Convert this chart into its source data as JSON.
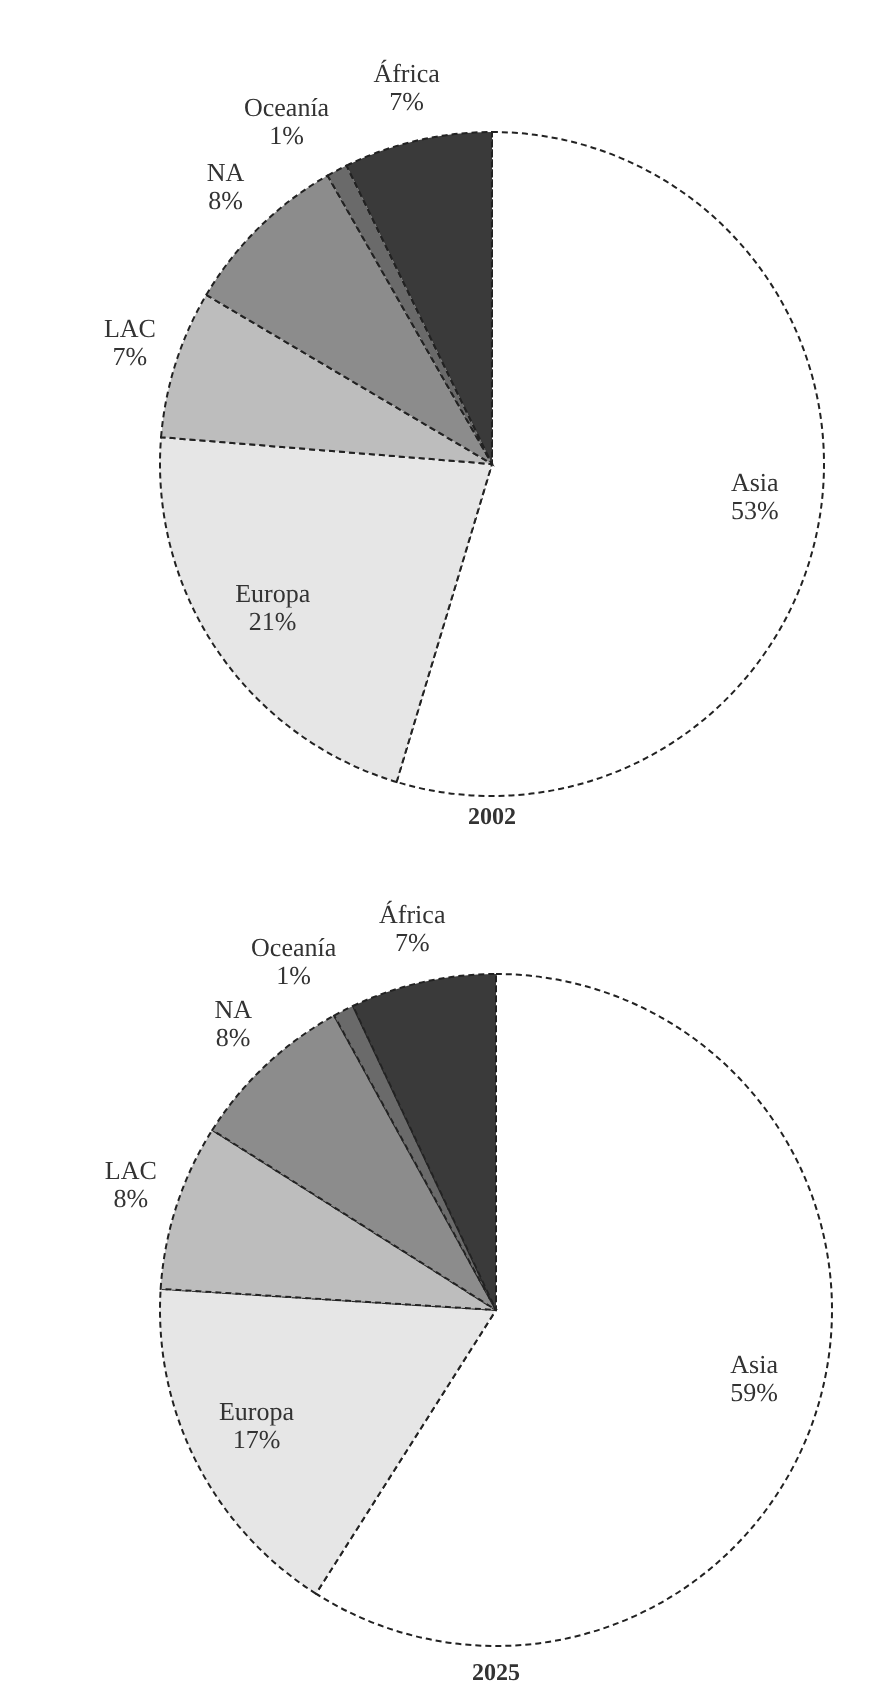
{
  "chart_data": [
    {
      "type": "pie",
      "title": "2002",
      "categories": [
        "Asia",
        "Europa",
        "LAC",
        "NA",
        "Oceanía",
        "África"
      ],
      "values": [
        53,
        21,
        7,
        8,
        1,
        7
      ],
      "value_labels": [
        "53%",
        "21%",
        "7%",
        "8%",
        "1%",
        "7%"
      ],
      "colors": [
        "#ffffff",
        "#e6e6e6",
        "#bdbdbd",
        "#8c8c8c",
        "#6a6a6a",
        "#3a3a3a"
      ]
    },
    {
      "type": "pie",
      "title": "2025",
      "categories": [
        "Asia",
        "Europa",
        "LAC",
        "NA",
        "Oceanía",
        "África"
      ],
      "values": [
        59,
        17,
        8,
        8,
        1,
        7
      ],
      "value_labels": [
        "59%",
        "17%",
        "8%",
        "8%",
        "1%",
        "7%"
      ],
      "colors": [
        "#ffffff",
        "#e6e6e6",
        "#bdbdbd",
        "#8c8c8c",
        "#6a6a6a",
        "#3a3a3a"
      ]
    }
  ]
}
